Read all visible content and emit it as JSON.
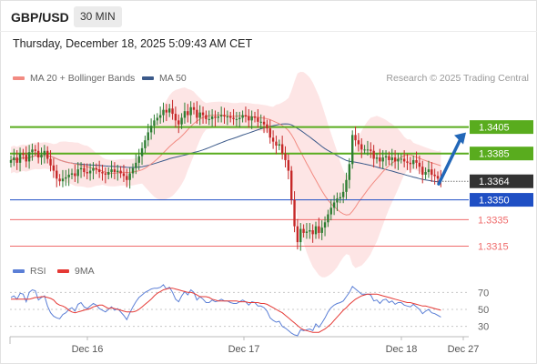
{
  "header": {
    "pair": "GBP/USD",
    "timeframe": "30 MIN",
    "timestamp": "Thursday, December 18, 2025 5:09:43 AM CET"
  },
  "legend": {
    "ma20": {
      "label": "MA 20 + Bollinger Bands",
      "color": "#f28b82"
    },
    "ma50": {
      "label": "MA 50",
      "color": "#3c5a8a"
    },
    "rsi": {
      "label": "RSI",
      "color": "#5b7fd6"
    },
    "ma9": {
      "label": "9MA",
      "color": "#e53935"
    }
  },
  "credit": "Research © 2025 Trading Central",
  "colors": {
    "up": "#2e7d32",
    "down": "#c62828",
    "resistance": "#59ac1e",
    "pivot": "#1f4fc4",
    "support": "#ef6b6b",
    "band": "#fde0e0",
    "arrow": "#2267b8"
  },
  "chart_data": [
    {
      "type": "candlestick",
      "ylim": [
        1.3305,
        1.3435
      ],
      "x_ticks": [
        "Dec 16",
        "Dec 17",
        "Dec 18",
        "Dec 27"
      ],
      "last_price": {
        "value": 1.3364,
        "label": "1.3364"
      },
      "levels": [
        {
          "value": 1.3405,
          "label": "1.3405",
          "kind": "resistance"
        },
        {
          "value": 1.3385,
          "label": "1.3385",
          "kind": "resistance"
        },
        {
          "value": 1.335,
          "label": "1.3350",
          "kind": "pivot"
        },
        {
          "value": 1.3335,
          "label": "1.3335",
          "kind": "support"
        },
        {
          "value": 1.3315,
          "label": "1.3315",
          "kind": "support"
        }
      ],
      "forecast": {
        "direction": "up",
        "from": 1.3362,
        "to": 1.3405
      },
      "candles_close": [
        1.338,
        1.3382,
        1.3378,
        1.3385,
        1.3384,
        1.3379,
        1.3386,
        1.3388,
        1.3387,
        1.3382,
        1.3384,
        1.3387,
        1.3381,
        1.3376,
        1.3372,
        1.3366,
        1.3364,
        1.3366,
        1.3367,
        1.3369,
        1.337,
        1.3368,
        1.3373,
        1.3374,
        1.3371,
        1.337,
        1.3372,
        1.3374,
        1.3373,
        1.3371,
        1.337,
        1.3369,
        1.3371,
        1.3373,
        1.3371,
        1.3372,
        1.337,
        1.3368,
        1.3365,
        1.337,
        1.3374,
        1.3378,
        1.3383,
        1.3389,
        1.3395,
        1.3401,
        1.3406,
        1.341,
        1.3412,
        1.3414,
        1.3418,
        1.3416,
        1.3419,
        1.3415,
        1.341,
        1.3407,
        1.3412,
        1.3417,
        1.3414,
        1.342,
        1.3418,
        1.3412,
        1.3416,
        1.3414,
        1.3411,
        1.3411,
        1.3413,
        1.3412,
        1.3413,
        1.3414,
        1.3413,
        1.3413,
        1.3412,
        1.3411,
        1.3411,
        1.3412,
        1.3414,
        1.3413,
        1.341,
        1.3413,
        1.3412,
        1.3409,
        1.3409,
        1.3407,
        1.3404,
        1.3397,
        1.3394,
        1.3391,
        1.3392,
        1.3385,
        1.338,
        1.3372,
        1.335,
        1.333,
        1.3318,
        1.3328,
        1.3325,
        1.3326,
        1.3327,
        1.3324,
        1.333,
        1.3325,
        1.3329,
        1.3333,
        1.3339,
        1.3344,
        1.3348,
        1.3351,
        1.3352,
        1.3356,
        1.3365,
        1.3377,
        1.3399,
        1.3395,
        1.3392,
        1.3388,
        1.3388,
        1.3388,
        1.3387,
        1.3381,
        1.3382,
        1.3379,
        1.3382,
        1.3383,
        1.338,
        1.3382,
        1.3379,
        1.3381,
        1.3381,
        1.3379,
        1.3378,
        1.3377,
        1.338,
        1.3378,
        1.3375,
        1.3369,
        1.3371,
        1.3373,
        1.3369,
        1.3368,
        1.3366,
        1.3364
      ]
    },
    {
      "type": "line",
      "title": "RSI",
      "ylim": [
        20,
        80
      ],
      "y_ticks": [
        70,
        50,
        30
      ],
      "series": [
        {
          "name": "RSI",
          "values": [
            64,
            66,
            62,
            69,
            68,
            59,
            70,
            73,
            72,
            61,
            64,
            66,
            54,
            46,
            42,
            40,
            39,
            44,
            46,
            50,
            52,
            48,
            56,
            58,
            53,
            51,
            54,
            57,
            55,
            51,
            49,
            47,
            50,
            53,
            49,
            51,
            47,
            43,
            38,
            46,
            53,
            59,
            64,
            67,
            70,
            72,
            74,
            75,
            75,
            76,
            79,
            74,
            76,
            70,
            62,
            59,
            66,
            71,
            67,
            73,
            70,
            61,
            65,
            62,
            58,
            58,
            61,
            59,
            60,
            62,
            60,
            60,
            58,
            57,
            57,
            59,
            61,
            59,
            55,
            59,
            58,
            54,
            54,
            52,
            48,
            40,
            37,
            35,
            36,
            30,
            28,
            25,
            22,
            20,
            19,
            26,
            25,
            26,
            27,
            25,
            33,
            29,
            34,
            40,
            47,
            52,
            55,
            57,
            58,
            60,
            65,
            70,
            77,
            74,
            71,
            68,
            68,
            68,
            67,
            60,
            61,
            57,
            61,
            62,
            58,
            60,
            56,
            58,
            58,
            55,
            54,
            53,
            56,
            53,
            50,
            45,
            48,
            50,
            46,
            45,
            43,
            41
          ]
        },
        {
          "name": "9MA",
          "values": [
            62,
            62,
            62,
            62,
            62,
            62,
            62,
            63,
            64,
            64,
            65,
            65,
            64,
            63,
            61,
            57,
            55,
            54,
            52,
            49,
            47,
            46,
            47,
            48,
            49,
            50,
            51,
            53,
            54,
            55,
            55,
            53,
            51,
            52,
            51,
            50,
            49,
            48,
            47,
            47,
            47,
            48,
            50,
            53,
            56,
            59,
            62,
            66,
            69,
            71,
            73,
            74,
            75,
            75,
            74,
            73,
            72,
            71,
            70,
            70,
            69,
            67,
            65,
            65,
            65,
            64,
            62,
            61,
            60,
            60,
            60,
            60,
            60,
            60,
            60,
            59,
            59,
            59,
            58,
            58,
            58,
            58,
            57,
            57,
            56,
            54,
            52,
            50,
            48,
            46,
            43,
            40,
            37,
            34,
            31,
            28,
            26,
            25,
            24,
            23,
            23,
            23,
            25,
            27,
            30,
            33,
            37,
            41,
            45,
            49,
            52,
            56,
            59,
            62,
            64,
            66,
            67,
            68,
            68,
            68,
            68,
            67,
            66,
            65,
            64,
            63,
            62,
            61,
            60,
            59,
            58,
            58,
            57,
            56,
            55,
            54,
            54,
            53,
            52,
            51,
            50,
            49
          ]
        }
      ]
    }
  ]
}
